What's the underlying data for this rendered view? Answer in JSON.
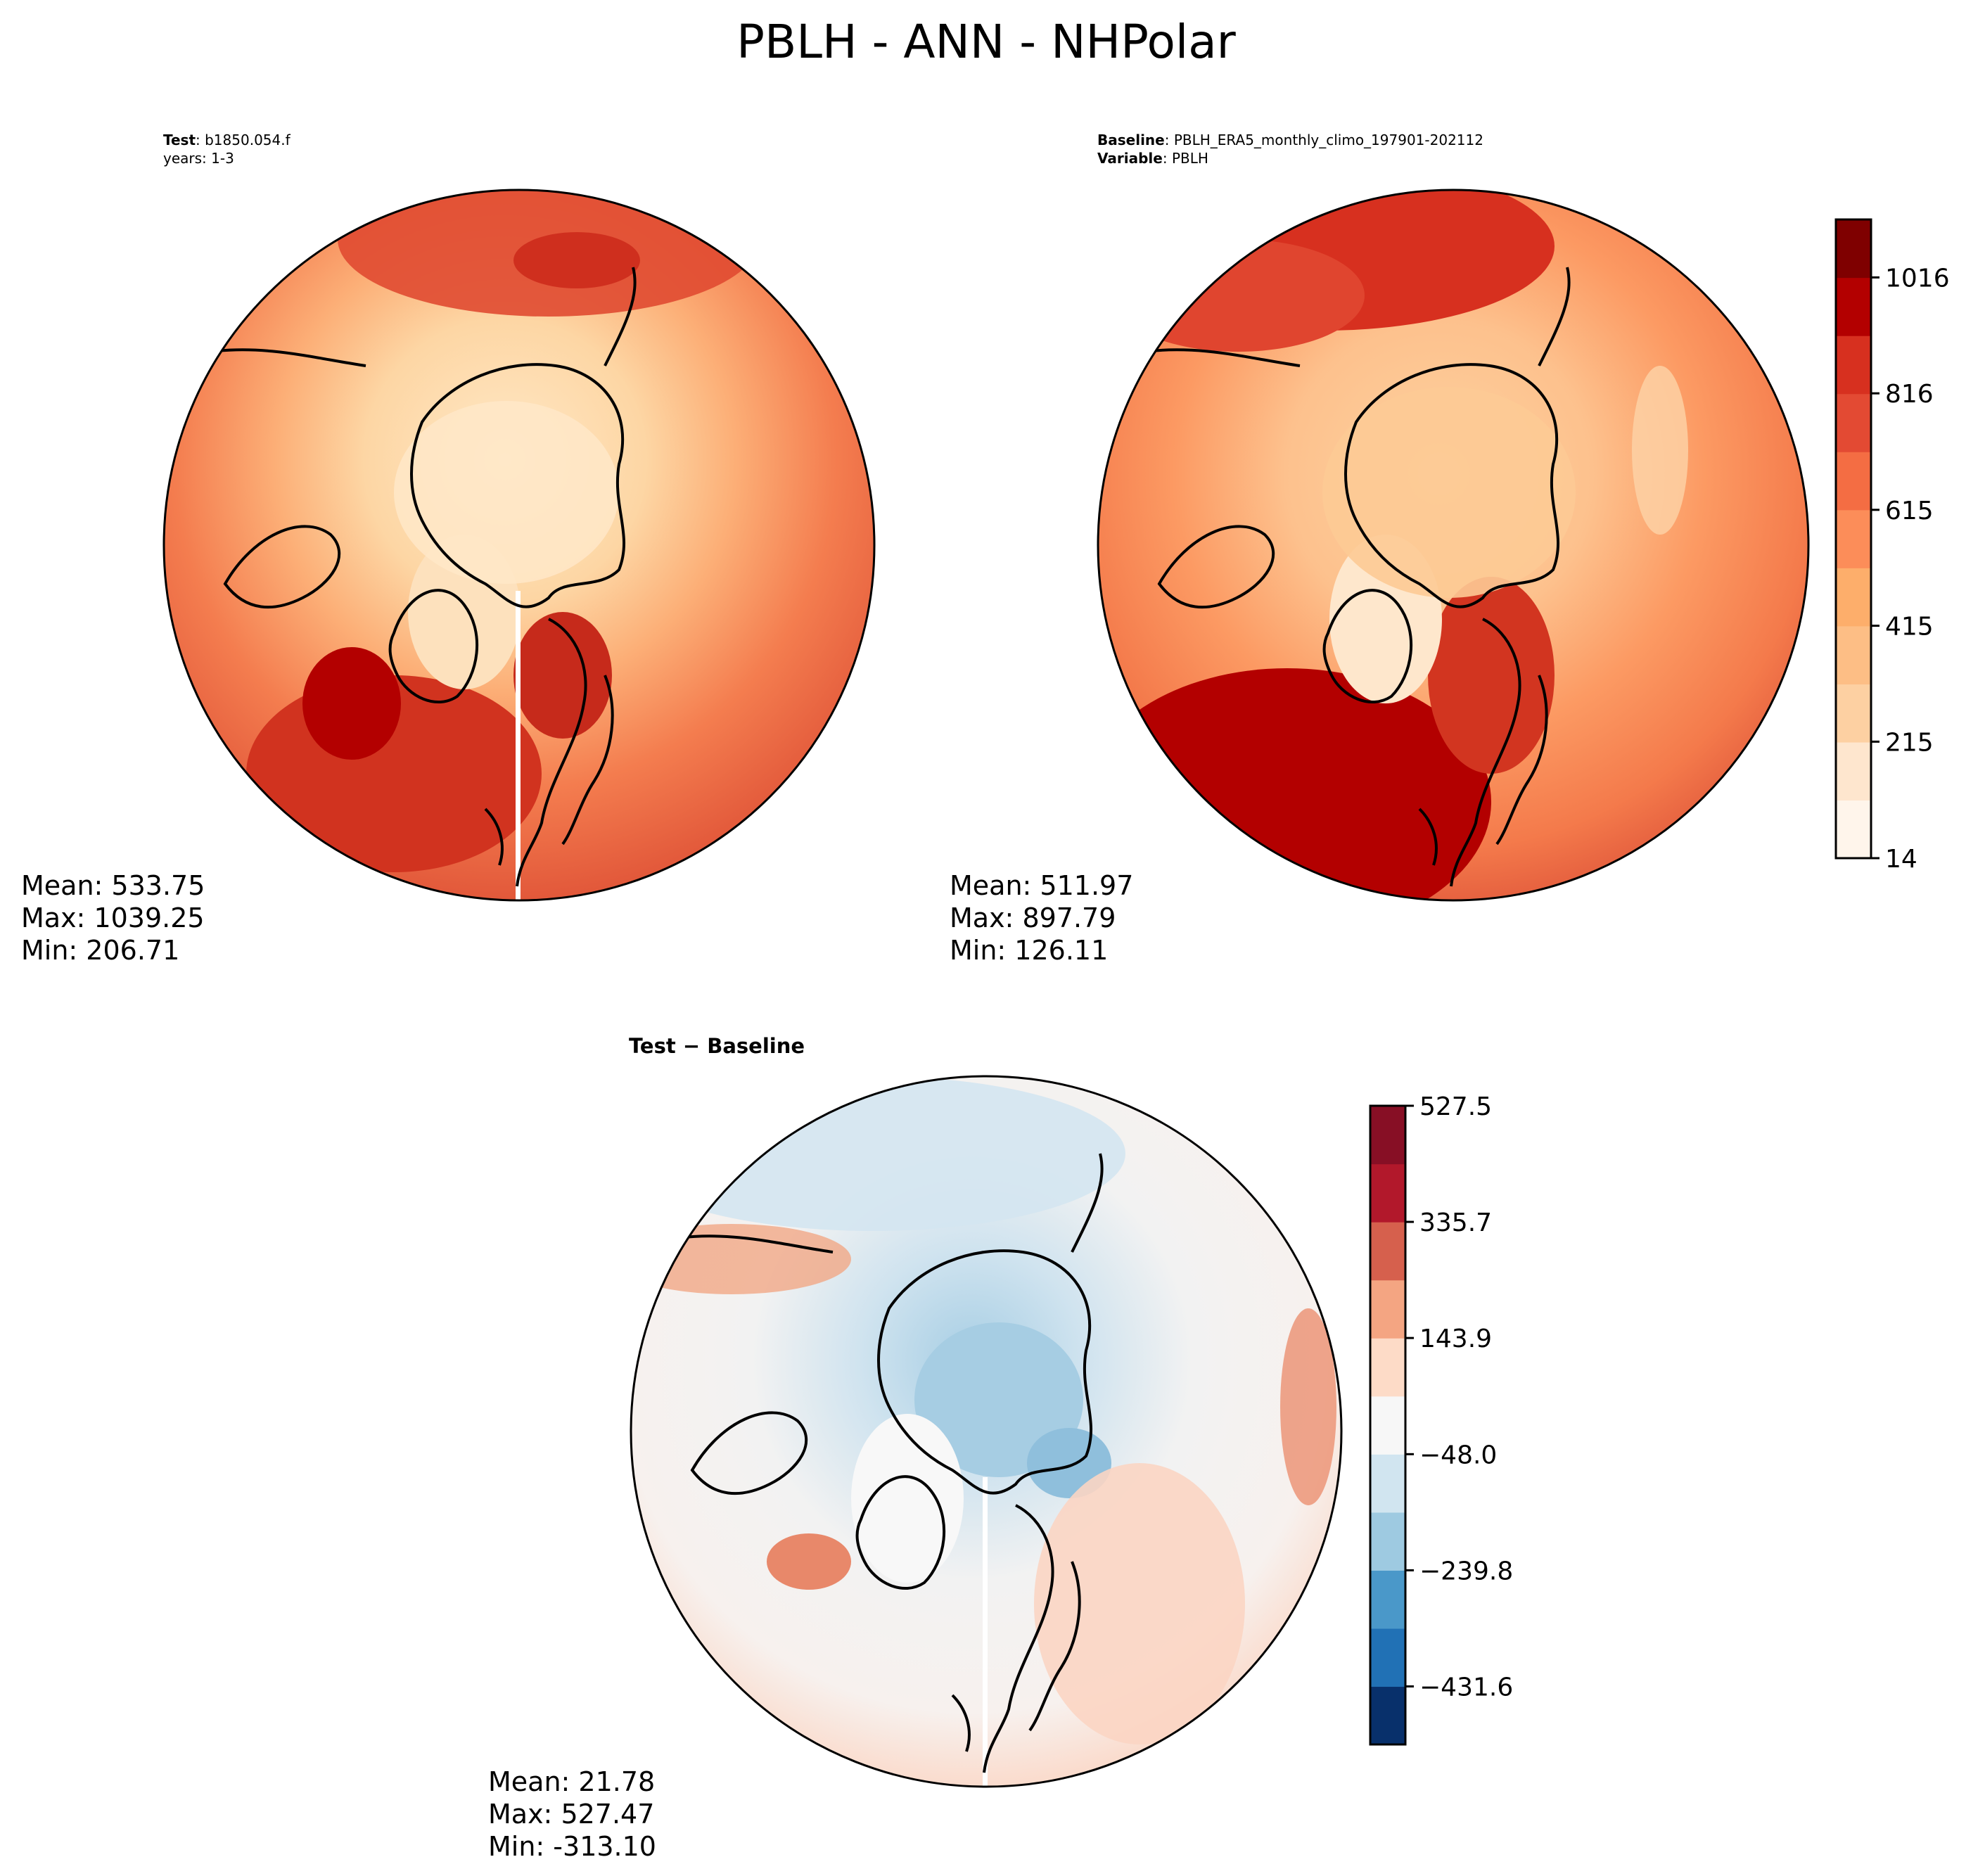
{
  "figure": {
    "title": "PBLH - ANN - NHPolar"
  },
  "panels": {
    "test": {
      "label_bold": "Test",
      "label_value": ": b1850.054.f",
      "years": "years: 1-3",
      "stats": {
        "mean": "Mean: 533.75",
        "max": "Max: 1039.25",
        "min": "Min: 206.71"
      }
    },
    "baseline": {
      "label_bold": "Baseline",
      "label_value": ": PBLH_ERA5_monthly_climo_197901-202112",
      "variable_bold": "Variable",
      "variable_value": ": PBLH",
      "stats": {
        "mean": "Mean: 511.97",
        "max": "Max: 897.79",
        "min": "Min: 126.11"
      }
    },
    "diff": {
      "label": "Test − Baseline",
      "stats": {
        "mean": "Mean: 21.78",
        "max": "Max: 527.47",
        "min": "Min: -313.10"
      }
    }
  },
  "chart_data": [
    {
      "type": "heatmap",
      "title": "Test: b1850.054.f, years: 1-3",
      "projection": "north-polar-stereographic",
      "variable": "PBLH",
      "stats": {
        "mean": 533.75,
        "max": 1039.25,
        "min": 206.71
      },
      "colorbar": "shared-with-baseline"
    },
    {
      "type": "heatmap",
      "title": "Baseline: PBLH_ERA5_monthly_climo_197901-202112, Variable: PBLH",
      "projection": "north-polar-stereographic",
      "variable": "PBLH",
      "stats": {
        "mean": 511.97,
        "max": 897.79,
        "min": 126.11
      },
      "colorbar": {
        "min": 14,
        "max": 1116,
        "levels": [
          14,
          114,
          215,
          315,
          415,
          515,
          615,
          716,
          816,
          916,
          1016,
          1116
        ],
        "tick_values": [
          14,
          215,
          415,
          615,
          816,
          1016
        ],
        "tick_labels": [
          "14",
          "215",
          "415",
          "615",
          "816",
          "1016"
        ],
        "colors": [
          "#fff5eb",
          "#fee6ce",
          "#fdd0a2",
          "#fdbe85",
          "#fdae6b",
          "#fc8d59",
          "#f46d43",
          "#e34a33",
          "#d7301f",
          "#b30000",
          "#7f0000"
        ]
      }
    },
    {
      "type": "heatmap",
      "title": "Test − Baseline",
      "projection": "north-polar-stereographic",
      "variable": "PBLH difference",
      "stats": {
        "mean": 21.78,
        "max": 527.47,
        "min": -313.1
      },
      "colorbar": {
        "min": -527.5,
        "max": 527.5,
        "levels": [
          -527.5,
          -431.6,
          -335.7,
          -239.8,
          -143.9,
          -48.0,
          48.0,
          143.9,
          239.8,
          335.7,
          431.6,
          527.5
        ],
        "tick_values": [
          527.5,
          335.7,
          143.9,
          -48.0,
          -239.8,
          -431.6
        ],
        "tick_labels": [
          "527.5",
          "335.7",
          "143.9",
          "−48.0",
          "−239.8",
          "−431.6"
        ],
        "colors": [
          "#08306b",
          "#2171b5",
          "#4a98c9",
          "#9ecae1",
          "#d1e5f0",
          "#f7f7f7",
          "#fddbc7",
          "#f4a582",
          "#d6604d",
          "#b2182b",
          "#870f25"
        ]
      }
    }
  ]
}
